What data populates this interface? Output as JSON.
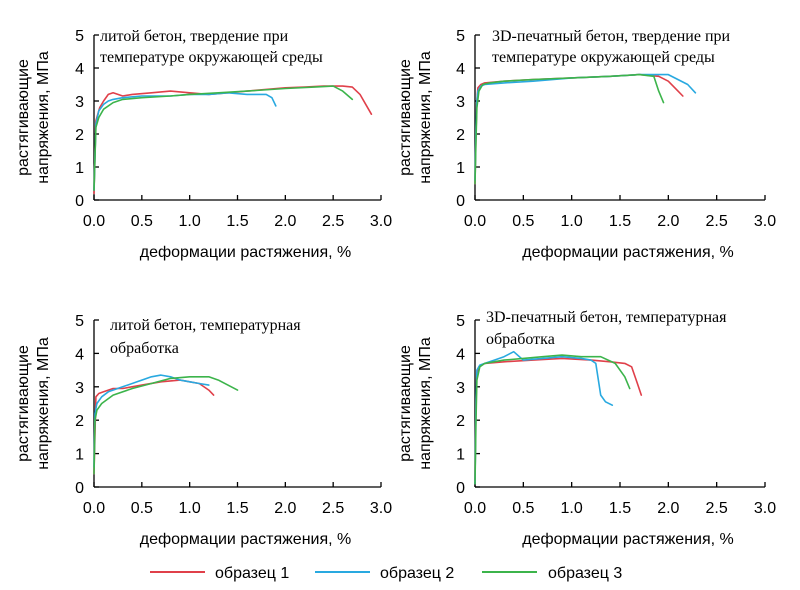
{
  "colors": {
    "series1": "#e0404a",
    "series2": "#29a9e0",
    "series3": "#3cb44b",
    "axis": "#000000"
  },
  "legend": {
    "items": [
      "образец 1",
      "образец 2",
      "образец 3"
    ]
  },
  "chart_data": [
    {
      "type": "line",
      "title_lines": [
        "литой бетон, твердение при",
        "температуре окружающей среды"
      ],
      "xlabel": "деформации растяжения, %",
      "ylabel_lines": [
        "растягивающие",
        "напряжения, МПа"
      ],
      "xlim": [
        0,
        3.0
      ],
      "ylim": [
        0,
        5
      ],
      "xticks": [
        "0.0",
        "0.5",
        "1.0",
        "1.5",
        "2.0",
        "2.5",
        "3.0"
      ],
      "yticks": [
        "0",
        "1",
        "2",
        "3",
        "4",
        "5"
      ],
      "series": [
        {
          "name": "образец 1",
          "x": [
            0,
            0.02,
            0.06,
            0.1,
            0.15,
            0.2,
            0.3,
            0.4,
            0.6,
            0.8,
            1.0,
            1.2,
            1.4,
            1.6,
            1.8,
            2.0,
            2.2,
            2.4,
            2.6,
            2.7,
            2.78,
            2.84,
            2.9
          ],
          "y": [
            0.2,
            2.4,
            2.8,
            3.0,
            3.2,
            3.25,
            3.15,
            3.2,
            3.25,
            3.3,
            3.25,
            3.2,
            3.25,
            3.3,
            3.35,
            3.4,
            3.42,
            3.45,
            3.45,
            3.42,
            3.2,
            2.9,
            2.6
          ]
        },
        {
          "name": "образец 2",
          "x": [
            0,
            0.02,
            0.05,
            0.1,
            0.15,
            0.2,
            0.3,
            0.5,
            0.8,
            1.0,
            1.2,
            1.4,
            1.6,
            1.8,
            1.86,
            1.9
          ],
          "y": [
            0.3,
            2.3,
            2.7,
            2.9,
            3.0,
            3.05,
            3.1,
            3.15,
            3.15,
            3.2,
            3.2,
            3.25,
            3.2,
            3.2,
            3.1,
            2.85
          ]
        },
        {
          "name": "образец 3",
          "x": [
            0,
            0.02,
            0.05,
            0.1,
            0.2,
            0.3,
            0.5,
            0.8,
            1.0,
            1.3,
            1.6,
            2.0,
            2.3,
            2.5,
            2.6,
            2.7
          ],
          "y": [
            0.3,
            2.2,
            2.5,
            2.75,
            2.95,
            3.05,
            3.1,
            3.15,
            3.2,
            3.25,
            3.3,
            3.38,
            3.42,
            3.45,
            3.3,
            3.05
          ]
        }
      ]
    },
    {
      "type": "line",
      "title_lines": [
        "3D-печатный  бетон, твердение при",
        "температуре окружающей среды"
      ],
      "xlabel": "деформации растяжения, %",
      "ylabel_lines": [
        "растягивающие",
        "напряжения, МПа"
      ],
      "xlim": [
        0,
        3.0
      ],
      "ylim": [
        0,
        5
      ],
      "xticks": [
        "0.0",
        "0.5",
        "1.0",
        "1.5",
        "2.0",
        "2.5",
        "3.0"
      ],
      "yticks": [
        "0",
        "1",
        "2",
        "3",
        "4",
        "5"
      ],
      "series": [
        {
          "name": "образец 1",
          "x": [
            0,
            0.01,
            0.02,
            0.03,
            0.06,
            0.1,
            0.3,
            0.6,
            1.0,
            1.4,
            1.7,
            1.9,
            2.0,
            2.1,
            2.15
          ],
          "y": [
            0.5,
            2.0,
            3.0,
            3.4,
            3.5,
            3.55,
            3.6,
            3.65,
            3.7,
            3.75,
            3.8,
            3.75,
            3.6,
            3.3,
            3.15
          ]
        },
        {
          "name": "образец 2",
          "x": [
            0,
            0.01,
            0.02,
            0.03,
            0.06,
            0.1,
            0.3,
            0.6,
            1.0,
            1.4,
            1.7,
            2.0,
            2.2,
            2.28
          ],
          "y": [
            0.6,
            2.2,
            3.0,
            3.3,
            3.45,
            3.5,
            3.55,
            3.6,
            3.7,
            3.75,
            3.8,
            3.8,
            3.5,
            3.25
          ]
        },
        {
          "name": "образец 3",
          "x": [
            0,
            0.01,
            0.02,
            0.04,
            0.08,
            0.15,
            0.3,
            0.6,
            1.0,
            1.4,
            1.7,
            1.85,
            1.9,
            1.95
          ],
          "y": [
            0.5,
            1.8,
            2.8,
            3.3,
            3.5,
            3.55,
            3.6,
            3.65,
            3.7,
            3.75,
            3.8,
            3.75,
            3.3,
            2.95
          ]
        }
      ]
    },
    {
      "type": "line",
      "title_lines": [
        "литой бетон, температурная",
        " обработка"
      ],
      "xlabel": "деформации растяжения, %",
      "ylabel_lines": [
        "растягивающие",
        "напряжения, МПа"
      ],
      "xlim": [
        0,
        3.0
      ],
      "ylim": [
        0,
        5
      ],
      "xticks": [
        "0.0",
        "0.5",
        "1.0",
        "1.5",
        "2.0",
        "2.5",
        "3.0"
      ],
      "yticks": [
        "0",
        "1",
        "2",
        "3",
        "4",
        "5"
      ],
      "series": [
        {
          "name": "образец 1",
          "x": [
            0,
            0.02,
            0.05,
            0.1,
            0.2,
            0.3,
            0.5,
            0.7,
            0.9,
            1.0,
            1.1,
            1.2,
            1.25
          ],
          "y": [
            0.4,
            2.7,
            2.8,
            2.85,
            2.95,
            2.95,
            3.05,
            3.15,
            3.2,
            3.15,
            3.1,
            2.9,
            2.75
          ]
        },
        {
          "name": "образец 2",
          "x": [
            0,
            0.01,
            0.03,
            0.08,
            0.15,
            0.3,
            0.45,
            0.6,
            0.7,
            0.8,
            0.9,
            1.0,
            1.1,
            1.2
          ],
          "y": [
            0.6,
            2.2,
            2.5,
            2.7,
            2.85,
            3.0,
            3.15,
            3.3,
            3.35,
            3.3,
            3.2,
            3.15,
            3.1,
            3.05
          ]
        },
        {
          "name": "образец 3",
          "x": [
            0,
            0.01,
            0.03,
            0.08,
            0.2,
            0.4,
            0.6,
            0.8,
            1.0,
            1.2,
            1.3,
            1.4,
            1.5
          ],
          "y": [
            0.4,
            2.0,
            2.3,
            2.5,
            2.75,
            2.95,
            3.1,
            3.25,
            3.3,
            3.3,
            3.2,
            3.05,
            2.9
          ]
        }
      ]
    },
    {
      "type": "line",
      "title_lines": [
        "3D-печатный бетон, температурная",
        "обработка"
      ],
      "xlabel": "деформации растяжения, %",
      "ylabel_lines": [
        "растягивающие",
        "напряжения, МПа"
      ],
      "xlim": [
        0,
        3.0
      ],
      "ylim": [
        0,
        5
      ],
      "xticks": [
        "0.0",
        "0.5",
        "1.0",
        "1.5",
        "2.0",
        "2.5",
        "3.0"
      ],
      "yticks": [
        "0",
        "1",
        "2",
        "3",
        "4",
        "5"
      ],
      "series": [
        {
          "name": "образец 1",
          "x": [
            0,
            0.01,
            0.02,
            0.04,
            0.1,
            0.3,
            0.6,
            0.9,
            1.2,
            1.4,
            1.55,
            1.62,
            1.68,
            1.72
          ],
          "y": [
            0.2,
            2.5,
            3.4,
            3.6,
            3.7,
            3.75,
            3.8,
            3.85,
            3.8,
            3.75,
            3.7,
            3.6,
            3.1,
            2.75
          ]
        },
        {
          "name": "образец 2",
          "x": [
            0,
            0.01,
            0.02,
            0.05,
            0.1,
            0.2,
            0.3,
            0.4,
            0.5,
            0.7,
            0.9,
            1.1,
            1.2,
            1.25,
            1.3,
            1.35,
            1.42
          ],
          "y": [
            0.1,
            2.6,
            3.5,
            3.65,
            3.7,
            3.8,
            3.9,
            4.05,
            3.8,
            3.85,
            3.9,
            3.85,
            3.8,
            3.7,
            2.75,
            2.55,
            2.45
          ]
        },
        {
          "name": "образец 3",
          "x": [
            0,
            0.01,
            0.02,
            0.05,
            0.1,
            0.3,
            0.5,
            0.7,
            0.9,
            1.1,
            1.3,
            1.45,
            1.55,
            1.6
          ],
          "y": [
            0.1,
            2.0,
            3.2,
            3.6,
            3.7,
            3.8,
            3.85,
            3.9,
            3.95,
            3.9,
            3.9,
            3.7,
            3.3,
            2.95
          ]
        }
      ]
    }
  ]
}
